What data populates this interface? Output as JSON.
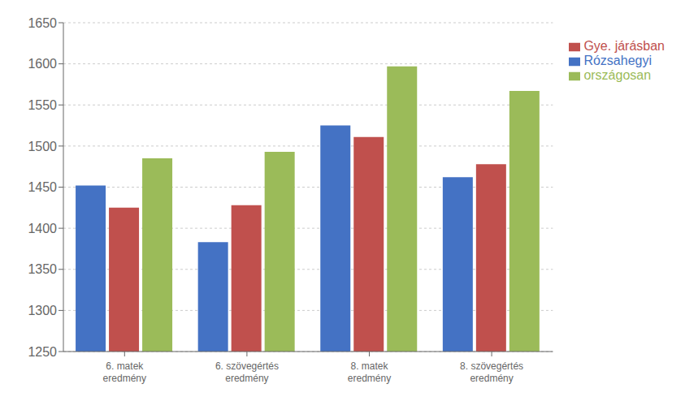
{
  "chart_data": {
    "type": "bar",
    "categories": [
      "6. matek\neredmény",
      "6. szövegértés\neredmény",
      "8. matek\neredmény",
      "8. szövegértés\neredmény"
    ],
    "series": [
      {
        "name": "Rózsahegyi",
        "color": "#4472C4",
        "values": [
          1452,
          1383,
          1525,
          1462
        ]
      },
      {
        "name": "Gye. járásban",
        "color": "#C0504D",
        "values": [
          1425,
          1428,
          1511,
          1478
        ]
      },
      {
        "name": "országosan",
        "color": "#9BBB59",
        "values": [
          1485,
          1493,
          1597,
          1567
        ]
      }
    ],
    "ylim": [
      1250,
      1650
    ],
    "yticks": [
      1250,
      1300,
      1350,
      1400,
      1450,
      1500,
      1550,
      1600,
      1650
    ],
    "grid": true,
    "legend": "right"
  }
}
